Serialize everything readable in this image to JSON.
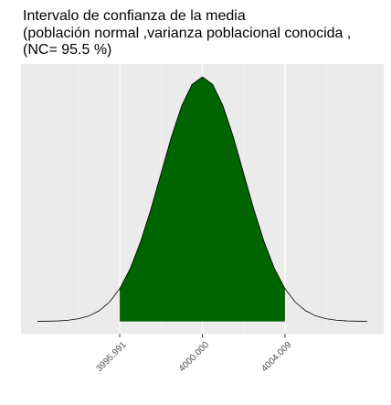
{
  "chart_data": {
    "type": "area",
    "title": [
      "Intervalo de confianza de la media",
      "(población normal ,varianza poblacional conocida ,",
      "(NC= 95.5 %)"
    ],
    "x": [
      3992,
      3992.5,
      3993,
      3993.5,
      3994,
      3994.5,
      3995,
      3995.5,
      3996,
      3996.5,
      3997,
      3997.5,
      3998,
      3998.5,
      3999,
      3999.5,
      4000,
      4000.5,
      4001,
      4001.5,
      4002,
      4002.5,
      4003,
      4003.5,
      4004,
      4004.5,
      4005,
      4005.5,
      4006,
      4006.5,
      4007,
      4007.5,
      4008
    ],
    "values": [
      0.0001,
      0.0002,
      0.0004,
      0.001,
      0.0022,
      0.0045,
      0.0088,
      0.0159,
      0.027,
      0.0431,
      0.0648,
      0.0913,
      0.121,
      0.1506,
      0.176,
      0.1933,
      0.1995,
      0.1933,
      0.176,
      0.1506,
      0.121,
      0.0913,
      0.0648,
      0.0431,
      0.027,
      0.0159,
      0.0088,
      0.0045,
      0.0022,
      0.001,
      0.0004,
      0.0002,
      0.0001
    ],
    "shaded_range": [
      3995.991,
      4004.009
    ],
    "color": "#006400",
    "line_color": "#000000",
    "xlim": [
      3991.2,
      4008.8
    ],
    "ylim": [
      -0.01,
      0.21
    ],
    "xticks": [
      3995.991,
      {
        "value": 4000,
        "label": "4000.000"
      },
      4004.009
    ],
    "grid": true
  }
}
